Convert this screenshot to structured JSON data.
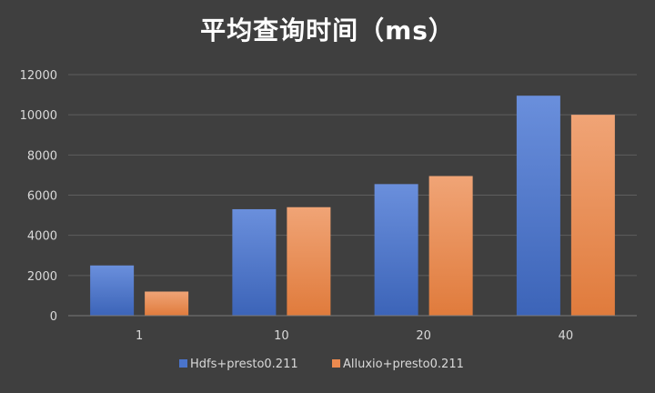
{
  "chart_data": {
    "type": "bar",
    "title": "平均查询时间（ms）",
    "categories": [
      "1",
      "10",
      "20",
      "40"
    ],
    "series": [
      {
        "name": "Hdfs+presto0.211",
        "values": [
          2500,
          5300,
          6550,
          10950
        ]
      },
      {
        "name": "Alluxio+presto0.211",
        "values": [
          1200,
          5400,
          6950,
          10000
        ]
      }
    ],
    "ylim": [
      0,
      12000
    ],
    "yticks": [
      "0",
      "2000",
      "4000",
      "6000",
      "8000",
      "10000",
      "12000"
    ],
    "grid": true,
    "legend_position": "bottom"
  },
  "colors": {
    "background": "#3f3f3f",
    "grid": "#5e5e5e",
    "series": [
      "#4a74cc",
      "#ec8a4f"
    ]
  }
}
